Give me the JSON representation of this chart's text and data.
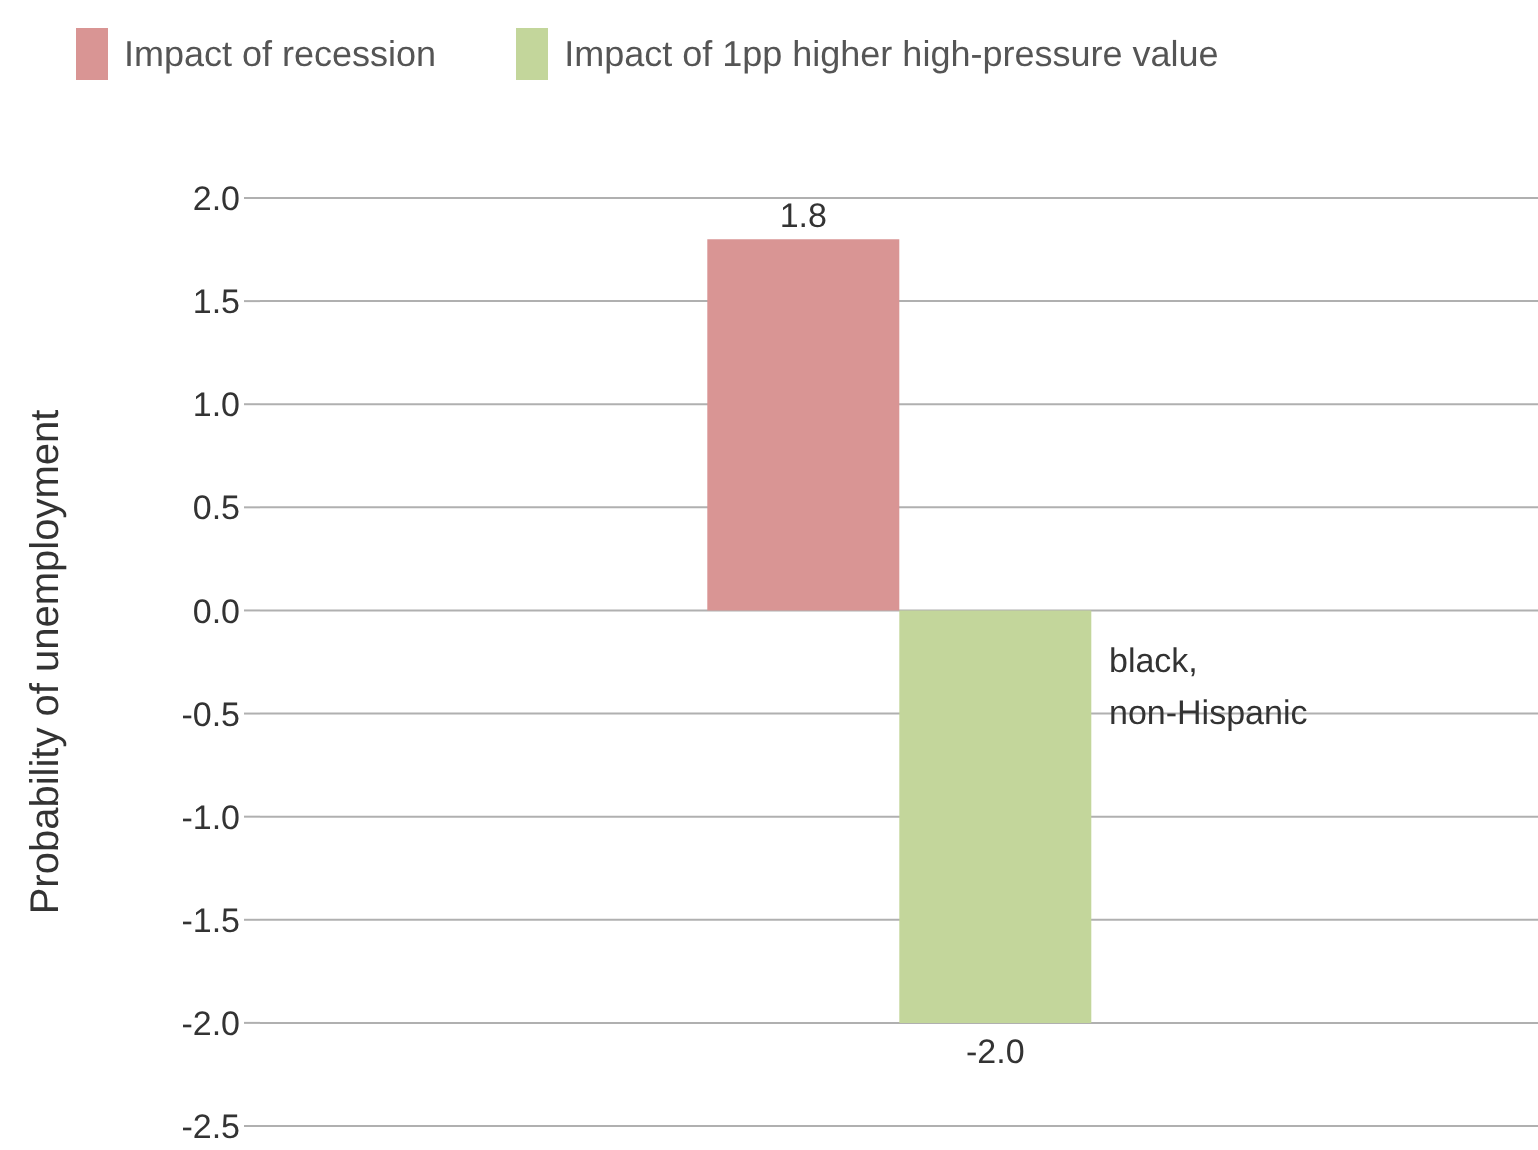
{
  "chart_data": {
    "type": "bar",
    "ylabel": "Probability of unemployment",
    "categories": [
      "black, non-Hispanic"
    ],
    "series": [
      {
        "name": "Impact of recession",
        "color": "#d99594",
        "values": [
          1.8
        ],
        "value_labels": [
          "1.8"
        ]
      },
      {
        "name": "Impact of 1pp higher high-pressure value",
        "color": "#c3d69b",
        "values": [
          -2.0
        ],
        "value_labels": [
          "-2.0"
        ]
      }
    ],
    "ylim": [
      -2.5,
      2.0
    ],
    "yticks": [
      {
        "value": -2.5,
        "label": "-2.5"
      },
      {
        "value": -2,
        "label": "-2.0"
      },
      {
        "value": -1.5,
        "label": "-1.5"
      },
      {
        "value": -1,
        "label": "-1.0"
      },
      {
        "value": -0.5,
        "label": "-0.5"
      },
      {
        "value": 0,
        "label": "0.0"
      },
      {
        "value": 0.5,
        "label": "0.5"
      },
      {
        "value": 1,
        "label": "1.0"
      },
      {
        "value": 1.5,
        "label": "1.5"
      },
      {
        "value": 2,
        "label": "2.0"
      }
    ],
    "grid": "y",
    "legend": "top left"
  }
}
